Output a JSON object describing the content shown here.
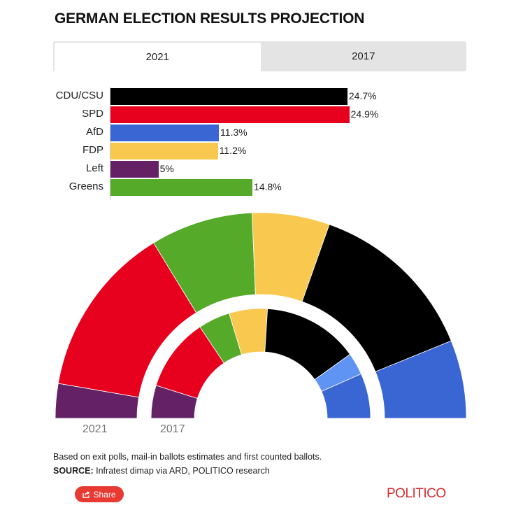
{
  "title": "GERMAN ELECTION RESULTS PROJECTION",
  "tabs": [
    {
      "label": "2021",
      "active": true
    },
    {
      "label": "2017",
      "active": false
    }
  ],
  "ring_labels": {
    "outer": "2021",
    "inner": "2017"
  },
  "footer": {
    "note": "Based on exit polls, mail-in ballots estimates and first counted ballots.",
    "source_label": "SOURCE:",
    "source_text": " Infratest dimap via ARD, POLITICO research",
    "share_label": "Share",
    "share_icon": "share-icon",
    "logo": "POLITICO"
  },
  "colors": {
    "CDU/CSU": "#000000",
    "SPD": "#e8001f",
    "AfD": "#3a66d4",
    "FDP": "#f9c94f",
    "Left": "#652166",
    "Greens": "#55aa2a",
    "CSU": "#5f93f4",
    "accent": "#e83a33"
  },
  "chart_data": [
    {
      "type": "bar",
      "orientation": "horizontal",
      "title": "2021",
      "categories": [
        "CDU/CSU",
        "SPD",
        "AfD",
        "FDP",
        "Left",
        "Greens"
      ],
      "values": [
        24.7,
        24.9,
        11.3,
        11.2,
        5,
        14.8
      ],
      "value_labels": [
        "24.7%",
        "24.9%",
        "11.3%",
        "11.2%",
        "5%",
        "14.8%"
      ],
      "xlim": [
        0,
        25
      ]
    },
    {
      "type": "pie",
      "variant": "semicircle-donut",
      "ring": "2021",
      "order": [
        "Left",
        "SPD",
        "Greens",
        "FDP",
        "CDU/CSU",
        "AfD"
      ],
      "values": [
        5,
        24.9,
        14.8,
        11.2,
        24.7,
        11.3
      ]
    },
    {
      "type": "pie",
      "variant": "semicircle-donut",
      "ring": "2017",
      "order": [
        "Left",
        "SPD",
        "Greens",
        "FDP",
        "CDU/CSU",
        "CSU",
        "AfD"
      ],
      "values": [
        9.2,
        20.5,
        8.9,
        10.7,
        26.8,
        6.2,
        12.6
      ]
    }
  ]
}
